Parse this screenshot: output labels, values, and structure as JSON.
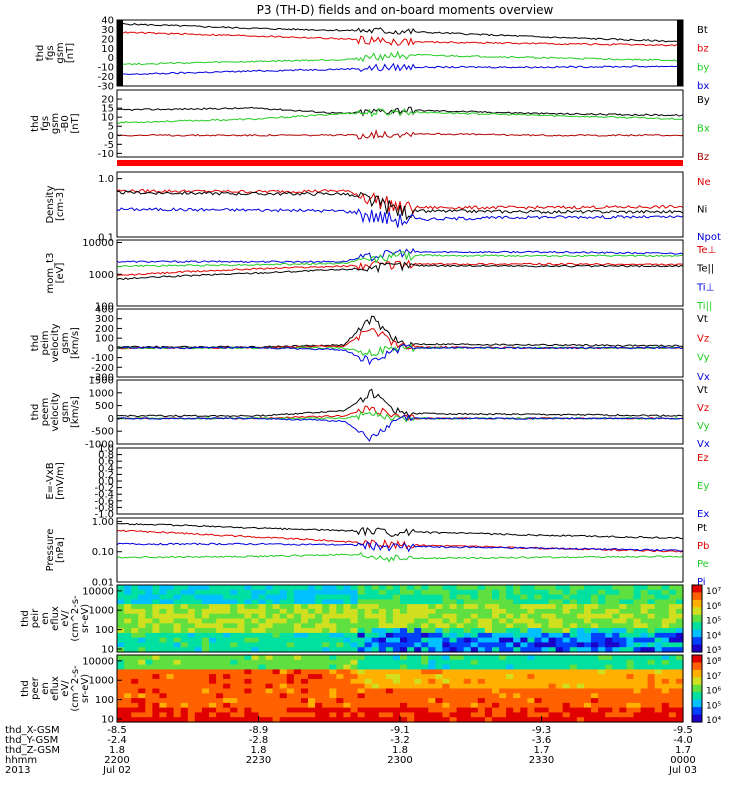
{
  "title": "P3 (TH-D) fields and on-board moments overview",
  "colors": {
    "black": "#000000",
    "red": "#e00000",
    "green": "#22cc22",
    "blue": "#0000dd",
    "darkred": "#b00000"
  },
  "ephemeris": {
    "rows": [
      {
        "label": "thd_X-GSM",
        "values": [
          "-8.5",
          "-8.9",
          "-9.1",
          "-9.3",
          "-9.5"
        ]
      },
      {
        "label": "thd_Y-GSM",
        "values": [
          "-2.4",
          "-2.8",
          "-3.2",
          "-3.6",
          "-4.0"
        ]
      },
      {
        "label": "thd_Z-GSM",
        "values": [
          "1.8",
          "1.8",
          "1.8",
          "1.7",
          "1.7"
        ]
      },
      {
        "label": "hhmm",
        "values": [
          "2200",
          "2230",
          "2300",
          "2330",
          "0000"
        ]
      },
      {
        "label": "2013",
        "values": [
          "Jul 02",
          "",
          "",
          "",
          "Jul 03"
        ]
      }
    ]
  },
  "chart_data": [
    {
      "id": "p1",
      "type": "line",
      "ylabel": [
        "thd",
        "fgs",
        "gsm",
        "[nT]"
      ],
      "ylim": [
        -30,
        40
      ],
      "yticks": [
        "40",
        "30",
        "20",
        "10",
        "0",
        "-10",
        "-20",
        "-30"
      ],
      "x_range_hours": [
        22,
        24
      ],
      "series": [
        {
          "name": "Bt",
          "color": "black",
          "x": [
            22,
            22.5,
            22.8,
            23.0,
            23.5,
            24
          ],
          "values": [
            36,
            31,
            29,
            28,
            22,
            17
          ]
        },
        {
          "name": "bz",
          "color": "red",
          "x": [
            22,
            22.5,
            22.8,
            23.0,
            23.5,
            24
          ],
          "values": [
            27,
            23,
            20,
            17,
            15,
            13
          ]
        },
        {
          "name": "by",
          "color": "green",
          "x": [
            22,
            22.5,
            22.8,
            23.0,
            23.5,
            24
          ],
          "values": [
            -7,
            -4,
            -2,
            3,
            0,
            -3
          ]
        },
        {
          "name": "bx",
          "color": "blue",
          "x": [
            22,
            22.5,
            22.8,
            23.0,
            23.5,
            24
          ],
          "values": [
            -18,
            -14,
            -12,
            -10,
            -10,
            -9
          ]
        }
      ]
    },
    {
      "id": "p2",
      "type": "line",
      "ylabel": [
        "thd",
        "fgs",
        "gsm",
        "-B0",
        "[nT]"
      ],
      "ylim": [
        -12,
        25
      ],
      "yticks": [
        "20",
        "15",
        "10",
        "5",
        "0",
        "-5",
        "-10"
      ],
      "x_range_hours": [
        22,
        24
      ],
      "series": [
        {
          "name": "By",
          "color": "black",
          "x": [
            22,
            22.5,
            22.8,
            23.0,
            23.5,
            24
          ],
          "values": [
            14,
            15,
            12,
            14,
            12,
            11
          ]
        },
        {
          "name": "Bx",
          "color": "green",
          "x": [
            22,
            22.5,
            22.8,
            23.0,
            23.5,
            24
          ],
          "values": [
            7,
            9,
            12,
            13,
            11,
            9
          ]
        },
        {
          "name": "Bz",
          "color": "darkred",
          "x": [
            22,
            22.5,
            22.8,
            23.0,
            23.5,
            24
          ],
          "values": [
            0,
            0,
            0,
            1,
            0,
            0
          ]
        }
      ]
    },
    {
      "id": "p3",
      "type": "line",
      "ylabel": [
        "Density",
        "[cm-3]"
      ],
      "yscale": "log",
      "ylim": [
        0.1,
        1.3
      ],
      "yticks": [
        "1.0",
        "0.1"
      ],
      "x_range_hours": [
        22,
        24
      ],
      "series": [
        {
          "name": "Ne",
          "color": "red",
          "x": [
            22,
            22.5,
            22.8,
            23.0,
            23.5,
            24
          ],
          "values": [
            0.62,
            0.6,
            0.62,
            0.32,
            0.32,
            0.33
          ]
        },
        {
          "name": "Ni",
          "color": "black",
          "x": [
            22,
            22.5,
            22.8,
            23.0,
            23.5,
            24
          ],
          "values": [
            0.58,
            0.55,
            0.55,
            0.28,
            0.27,
            0.27
          ]
        },
        {
          "name": "Npot",
          "color": "blue",
          "x": [
            22,
            22.5,
            22.8,
            23.0,
            23.5,
            24
          ],
          "values": [
            0.3,
            0.29,
            0.28,
            0.2,
            0.22,
            0.22
          ]
        }
      ]
    },
    {
      "id": "p4",
      "type": "line",
      "ylabel": [
        "mom_t3",
        "[eV]"
      ],
      "yscale": "log",
      "ylim": [
        100,
        12000
      ],
      "yticks": [
        "10000",
        "1000",
        "100"
      ],
      "x_range_hours": [
        22,
        24
      ],
      "series": [
        {
          "name": "Te⊥",
          "color": "red",
          "x": [
            22,
            22.5,
            22.8,
            23.0,
            23.5,
            24
          ],
          "values": [
            900,
            1500,
            1800,
            2100,
            2100,
            2000
          ]
        },
        {
          "name": "Te||",
          "color": "black",
          "x": [
            22,
            22.5,
            22.8,
            23.0,
            23.5,
            24
          ],
          "values": [
            700,
            1100,
            1400,
            1900,
            1800,
            1800
          ]
        },
        {
          "name": "Ti⊥",
          "color": "blue",
          "x": [
            22,
            22.5,
            22.8,
            23.0,
            23.5,
            24
          ],
          "values": [
            2500,
            2500,
            2500,
            5000,
            5000,
            4500
          ]
        },
        {
          "name": "Ti||",
          "color": "green",
          "x": [
            22,
            22.5,
            22.8,
            23.0,
            23.5,
            24
          ],
          "values": [
            1800,
            2000,
            2200,
            4000,
            3800,
            3800
          ]
        }
      ]
    },
    {
      "id": "p5",
      "type": "line",
      "ylabel": [
        "thd",
        "peim",
        "velocity",
        "gsm",
        "[km/s]"
      ],
      "ylim": [
        -300,
        400
      ],
      "yticks": [
        "400",
        "300",
        "200",
        "100",
        "0",
        "-100",
        "-200",
        "-300"
      ],
      "x_range_hours": [
        22,
        24
      ],
      "series": [
        {
          "name": "Vt",
          "color": "black",
          "x": [
            22,
            22.5,
            22.8,
            22.9,
            23.0,
            23.5,
            24
          ],
          "values": [
            10,
            10,
            30,
            300,
            40,
            30,
            20
          ]
        },
        {
          "name": "Vz",
          "color": "red",
          "x": [
            22,
            22.5,
            22.8,
            22.9,
            23.0,
            23.5,
            24
          ],
          "values": [
            0,
            0,
            20,
            200,
            10,
            0,
            0
          ]
        },
        {
          "name": "Vy",
          "color": "green",
          "x": [
            22,
            22.5,
            22.8,
            22.9,
            23.0,
            23.5,
            24
          ],
          "values": [
            0,
            0,
            0,
            -50,
            0,
            0,
            0
          ]
        },
        {
          "name": "Vx",
          "color": "blue",
          "x": [
            22,
            22.5,
            22.8,
            22.9,
            23.0,
            23.5,
            24
          ],
          "values": [
            0,
            0,
            -20,
            -150,
            0,
            0,
            0
          ]
        }
      ]
    },
    {
      "id": "p6",
      "type": "line",
      "ylabel": [
        "thd",
        "peem",
        "velocity",
        "gsm",
        "[km/s]"
      ],
      "ylim": [
        -1000,
        1500
      ],
      "yticks": [
        "1500",
        "1000",
        "500",
        "0",
        "-500",
        "-1000"
      ],
      "x_range_hours": [
        22,
        24
      ],
      "series": [
        {
          "name": "Vt",
          "color": "black",
          "x": [
            22,
            22.5,
            22.8,
            22.9,
            23.0,
            23.5,
            24
          ],
          "values": [
            100,
            100,
            300,
            1000,
            200,
            150,
            100
          ]
        },
        {
          "name": "Vz",
          "color": "red",
          "x": [
            22,
            22.5,
            22.8,
            22.9,
            23.0,
            23.5,
            24
          ],
          "values": [
            0,
            0,
            100,
            400,
            0,
            0,
            0
          ]
        },
        {
          "name": "Vy",
          "color": "green",
          "x": [
            22,
            22.5,
            22.8,
            22.9,
            23.0,
            23.5,
            24
          ],
          "values": [
            0,
            0,
            0,
            200,
            0,
            0,
            0
          ]
        },
        {
          "name": "Vx",
          "color": "blue",
          "x": [
            22,
            22.5,
            22.8,
            22.9,
            23.0,
            23.5,
            24
          ],
          "values": [
            0,
            0,
            -100,
            -800,
            0,
            0,
            0
          ]
        }
      ]
    },
    {
      "id": "p7",
      "type": "line",
      "ylabel": [
        "E=-VxB",
        "[mV/m]"
      ],
      "ylim": [
        -1,
        1
      ],
      "yticks": [
        "1.0",
        "0.8",
        "0.6",
        "0.4",
        "0.2",
        "0.0",
        "-0.2",
        "-0.4",
        "-0.6",
        "-0.8",
        "-1.0"
      ],
      "x_range_hours": [
        22,
        24
      ],
      "series": [
        {
          "name": "Ez",
          "color": "red",
          "x": [],
          "values": []
        },
        {
          "name": "Ey",
          "color": "green",
          "x": [],
          "values": []
        },
        {
          "name": "Ex",
          "color": "blue",
          "x": [],
          "values": []
        }
      ]
    },
    {
      "id": "p8",
      "type": "line",
      "ylabel": [
        "Pressure",
        "[nPa]"
      ],
      "yscale": "log",
      "ylim": [
        0.01,
        1.3
      ],
      "yticks": [
        "1.00",
        "0.10",
        "0.01"
      ],
      "x_range_hours": [
        22,
        24
      ],
      "series": [
        {
          "name": "Pt",
          "color": "black",
          "x": [
            22,
            22.5,
            22.8,
            23.0,
            23.5,
            24
          ],
          "values": [
            0.85,
            0.6,
            0.5,
            0.45,
            0.35,
            0.28
          ]
        },
        {
          "name": "Pb",
          "color": "red",
          "x": [
            22,
            22.5,
            22.8,
            23.0,
            23.5,
            24
          ],
          "values": [
            0.5,
            0.3,
            0.22,
            0.17,
            0.13,
            0.1
          ]
        },
        {
          "name": "Pe",
          "color": "green",
          "x": [
            22,
            22.5,
            22.8,
            23.0,
            23.5,
            24
          ],
          "values": [
            0.065,
            0.07,
            0.08,
            0.06,
            0.065,
            0.07
          ]
        },
        {
          "name": "Pi",
          "color": "blue",
          "x": [
            22,
            22.5,
            22.8,
            23.0,
            23.5,
            24
          ],
          "values": [
            0.18,
            0.18,
            0.17,
            0.15,
            0.13,
            0.11
          ]
        }
      ]
    },
    {
      "id": "p9",
      "type": "heatmap",
      "ylabel": [
        "thd",
        "peir",
        "en",
        "eflux",
        "eV/",
        "(cm^2-s-",
        "sr-eV)"
      ],
      "yscale": "log",
      "ylim": [
        7,
        20000
      ],
      "yticks": [
        "10000",
        "1000",
        "100",
        "10"
      ],
      "colorbar": {
        "range_exp": [
          3,
          7
        ],
        "ticks": [
          "10⁷",
          "10⁶",
          "10⁵",
          "10⁴",
          "10³"
        ]
      }
    },
    {
      "id": "p10",
      "type": "heatmap",
      "ylabel": [
        "thd",
        "peer",
        "en",
        "eflux",
        "eV/",
        "(cm^2-s-",
        "sr-eV)"
      ],
      "yscale": "log",
      "ylim": [
        7,
        20000
      ],
      "yticks": [
        "10000",
        "1000",
        "100",
        "10"
      ],
      "colorbar": {
        "range_exp": [
          4,
          8
        ],
        "ticks": [
          "10⁸",
          "10⁷",
          "10⁶",
          "10⁵",
          "10⁴"
        ]
      }
    }
  ]
}
